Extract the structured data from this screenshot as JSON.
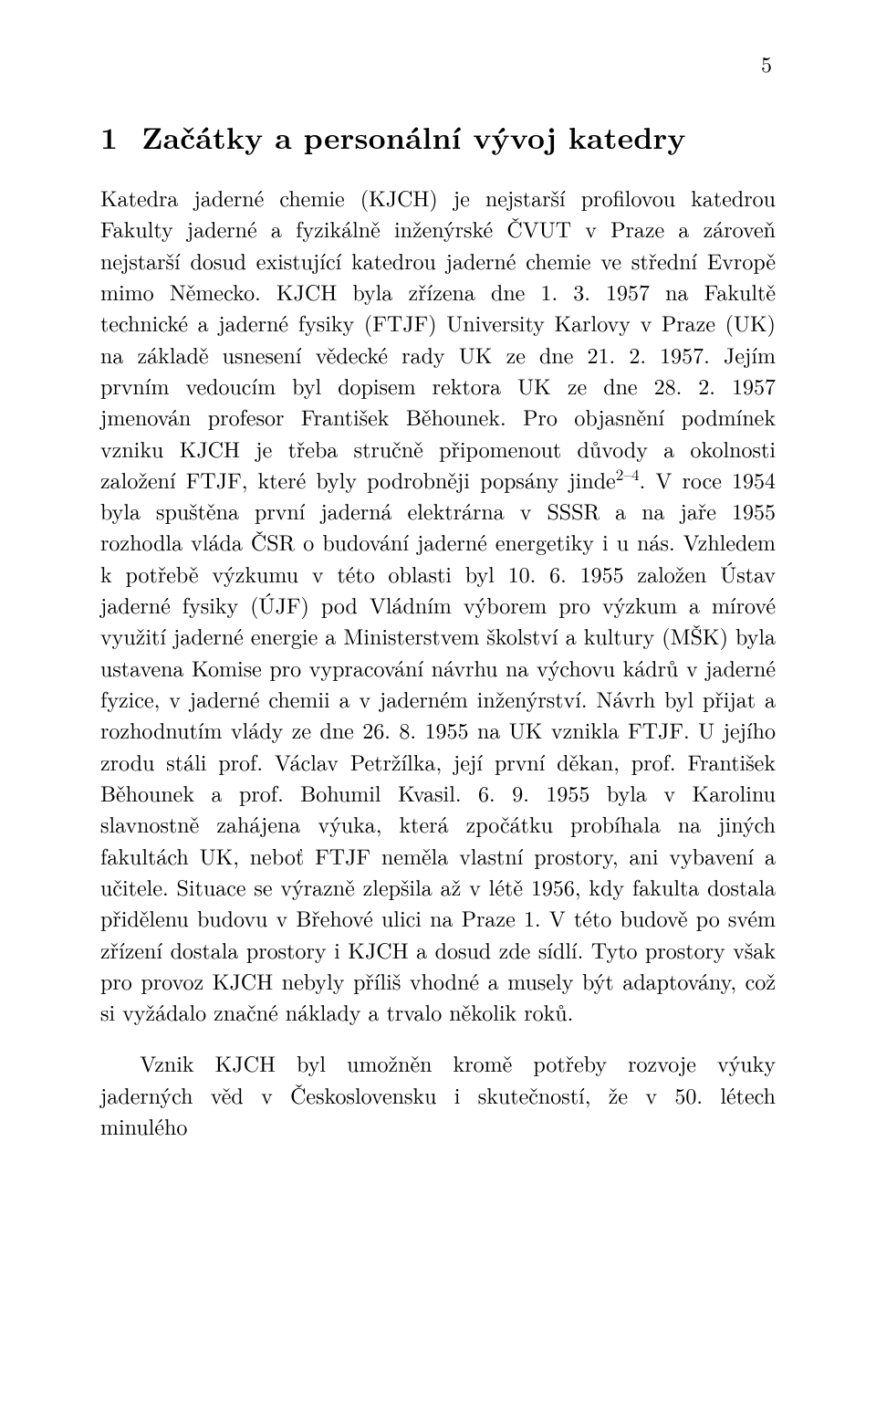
{
  "typography": {
    "font_family": "Latin Modern Roman / Computer Modern serif",
    "body_fontsize_pt": 12,
    "heading_fontsize_pt": 17,
    "page_number_fontsize_pt": 12,
    "text_color": "#000000",
    "background_color": "#ffffff",
    "line_height": 1.43,
    "text_align": "justify",
    "paragraph_indent_em": 1.8
  },
  "page_number": "5",
  "section": {
    "number": "1",
    "title": "Začátky a personální vývoj katedry"
  },
  "paragraphs": [
    {
      "indented": false,
      "runs": [
        {
          "t": "text",
          "v": "Katedra jaderné chemie (KJCH) je nejstarší profilovou katedrou Fakulty jaderné a fyzikálně inženýrské ČVUT v Praze a zároveň nejstarší dosud existující katedrou jaderné chemie ve střední Evropě mimo Německo. KJCH byla zřízena dne 1. 3. 1957 na Fakultě technické a jaderné fysiky (FTJF) University Karlovy v Praze (UK) na základě usnesení vědecké rady UK ze dne 21. 2. 1957. Jejím prvním vedoucím byl dopisem rektora UK ze dne 28. 2. 1957 jmenován profesor František Běhounek. Pro objasnění podmínek vzniku KJCH je třeba stručně připomenout důvody a okolnosti založení FTJF, které byly podrobněji popsány jinde"
        },
        {
          "t": "sup",
          "v": "2–4"
        },
        {
          "t": "text",
          "v": ". V roce 1954 byla spuštěna první jaderná elektrárna v SSSR a na jaře 1955 rozhodla vláda ČSR o budování jaderné energetiky i u nás. Vzhledem k potřebě výzkumu v této oblasti byl 10. 6. 1955 založen Ústav jaderné fysiky (ÚJF) pod Vládním výborem pro výzkum a mírové využití jaderné energie a Ministerstvem školství a kultury (MŠK) byla ustavena Komise pro vypracování návrhu na výchovu kádrů v jaderné fyzice, v jaderné chemii a v jaderném inženýrství. Návrh byl přijat a rozhodnutím vlády ze dne 26. 8. 1955 na UK vznikla FTJF. U jejího zrodu stáli prof. Václav Petržílka, její první děkan, prof. František Běhounek a prof. Bohumil Kvasil. 6. 9. 1955 byla v Karolinu slavnostně zahájena výuka, která zpočátku probíhala na jiných fakultách UK, neboť FTJF neměla vlastní prostory, ani vybavení a učitele. Situace se výrazně zlepšila až v létě 1956, kdy fakulta dostala přidělenu budovu v Břehové ulici na Praze 1. V této budově po svém zřízení dostala prostory i KJCH a dosud zde sídlí. Tyto prostory však pro provoz KJCH nebyly příliš vhodné a musely být adaptovány, což si vyžádalo značné náklady a trvalo několik roků."
        }
      ]
    },
    {
      "indented": true,
      "runs": [
        {
          "t": "text",
          "v": "Vznik KJCH byl umožněn kromě potřeby rozvoje výuky jaderných věd v Československu i skutečností, že v 50. létech minulého"
        }
      ]
    }
  ]
}
